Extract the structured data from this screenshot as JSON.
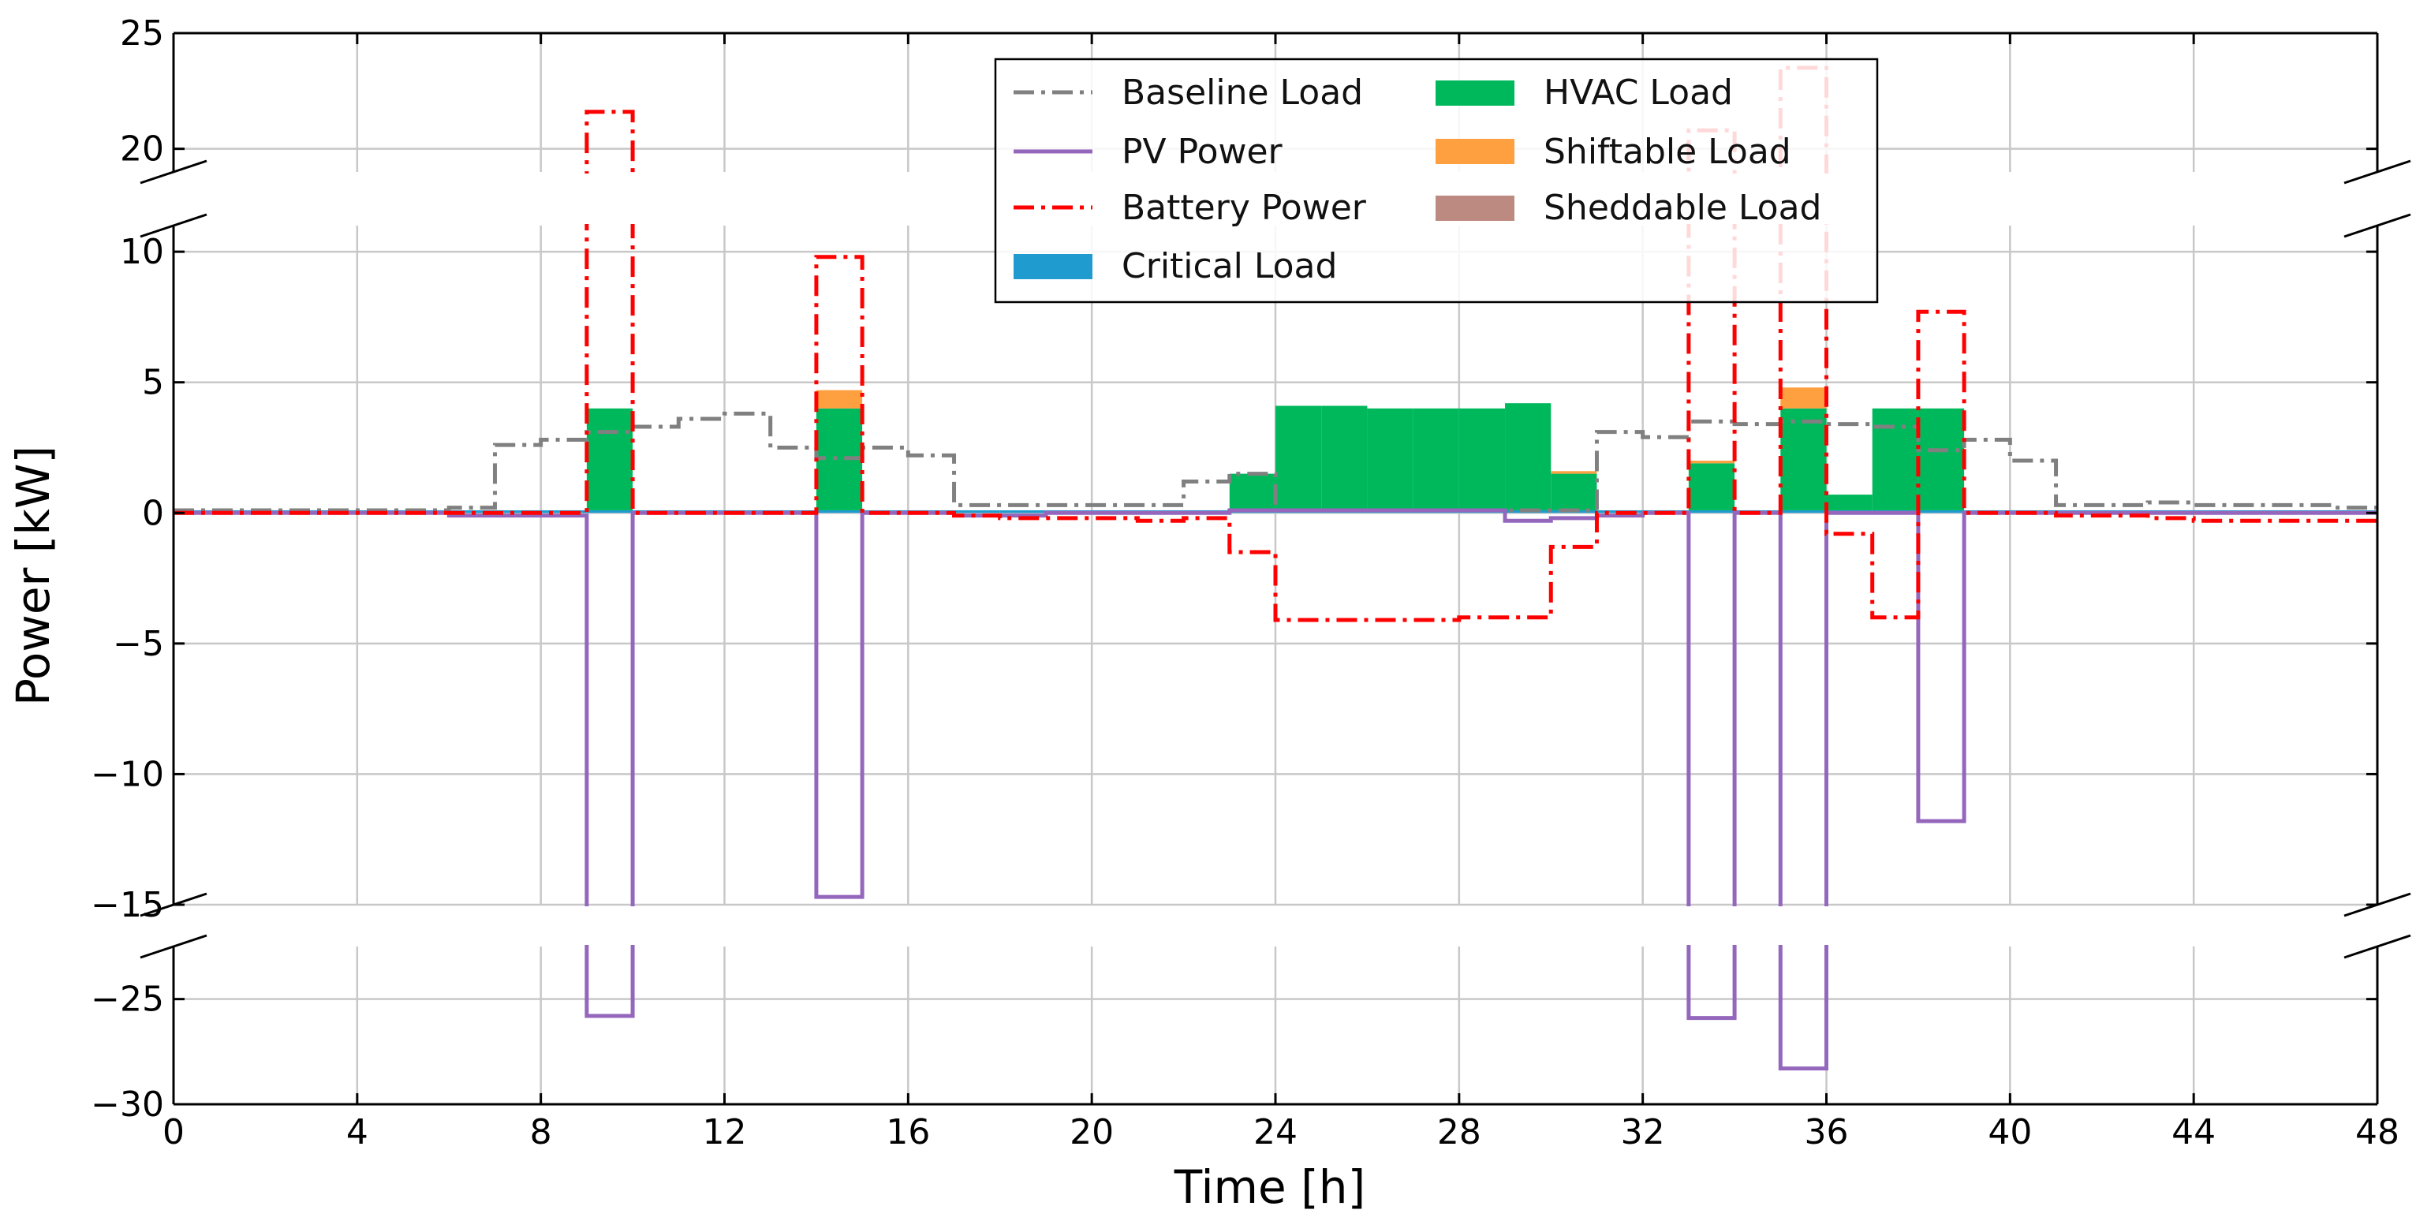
{
  "chart_data": {
    "type": "line",
    "title": "",
    "xlabel": "Time [h]",
    "ylabel": "Power [kW]",
    "xlim": [
      0,
      48
    ],
    "x_ticks": [
      0,
      4,
      8,
      12,
      16,
      20,
      24,
      28,
      32,
      36,
      40,
      44,
      48
    ],
    "broken_axis": {
      "segments": [
        {
          "name": "upper",
          "ylim": [
            19,
            25
          ],
          "ticks": [
            20,
            25
          ]
        },
        {
          "name": "middle",
          "ylim": [
            -15,
            11
          ],
          "ticks": [
            -15,
            -10,
            -5,
            0,
            5,
            10
          ]
        },
        {
          "name": "lower",
          "ylim": [
            -30,
            -22.5
          ],
          "ticks": [
            -25,
            -30
          ]
        }
      ]
    },
    "grid": true,
    "legend": {
      "position": "top-center",
      "columns": 2,
      "entries": [
        {
          "label": "Baseline Load",
          "style": "dashdot-line",
          "color": "#808080"
        },
        {
          "label": "PV Power",
          "style": "line",
          "color": "#9467bd"
        },
        {
          "label": "Battery Power",
          "style": "dashdot-line",
          "color": "#ff0000"
        },
        {
          "label": "Critical Load",
          "style": "patch",
          "color": "#1f9bcf"
        },
        {
          "label": "HVAC Load",
          "style": "patch",
          "color": "#00b85c"
        },
        {
          "label": "Shiftable Load",
          "style": "patch",
          "color": "#ffa040"
        },
        {
          "label": "Sheddable Load",
          "style": "patch",
          "color": "#bc8a80"
        }
      ]
    },
    "hours": [
      0,
      1,
      2,
      3,
      4,
      5,
      6,
      7,
      8,
      9,
      10,
      11,
      12,
      13,
      14,
      15,
      16,
      17,
      18,
      19,
      20,
      21,
      22,
      23,
      24,
      25,
      26,
      27,
      28,
      29,
      30,
      31,
      32,
      33,
      34,
      35,
      36,
      37,
      38,
      39,
      40,
      41,
      42,
      43,
      44,
      45,
      46,
      47
    ],
    "series": [
      {
        "name": "Baseline Load",
        "kind": "step",
        "color": "#808080",
        "values": [
          0.1,
          0.1,
          0.1,
          0.1,
          0.1,
          0.1,
          0.2,
          2.6,
          2.8,
          3.1,
          3.3,
          3.6,
          3.8,
          2.5,
          2.1,
          2.5,
          2.2,
          0.3,
          0.3,
          0.3,
          0.3,
          0.3,
          1.2,
          1.5,
          0.1,
          0.1,
          0.1,
          0.1,
          0.1,
          0.1,
          0.1,
          3.1,
          2.9,
          3.5,
          3.4,
          3.5,
          3.4,
          3.3,
          2.4,
          2.8,
          2.0,
          0.3,
          0.3,
          0.4,
          0.3,
          0.3,
          0.3,
          0.2
        ]
      },
      {
        "name": "PV Power",
        "kind": "step",
        "color": "#9467bd",
        "values": [
          0,
          0,
          0,
          0,
          0,
          0,
          -0.1,
          -0.1,
          -0.1,
          -25.8,
          0,
          0,
          0,
          0,
          -14.7,
          0,
          0,
          -0.1,
          -0.1,
          0,
          0,
          0,
          0,
          0.1,
          0.1,
          0.1,
          0.1,
          0.1,
          0.1,
          -0.3,
          -0.2,
          -0.1,
          0,
          -25.9,
          0,
          -28.3,
          0,
          0,
          -11.8,
          0,
          0,
          0,
          0,
          0,
          0,
          0,
          0,
          0
        ]
      },
      {
        "name": "Battery Power",
        "kind": "step",
        "color": "#ff0000",
        "values": [
          0,
          0,
          0,
          0,
          0,
          0,
          0,
          0,
          0,
          21.6,
          0,
          0,
          0,
          0,
          9.8,
          0,
          0,
          -0.1,
          -0.2,
          -0.2,
          -0.2,
          -0.3,
          -0.2,
          -1.5,
          -4.1,
          -4.1,
          -4.1,
          -4.1,
          -4.0,
          -4.0,
          -1.3,
          0,
          0,
          20.8,
          0,
          23.5,
          -0.8,
          -4.0,
          7.7,
          0,
          0,
          -0.1,
          -0.1,
          -0.2,
          -0.3,
          -0.3,
          -0.3,
          -0.3
        ]
      },
      {
        "name": "Critical Load",
        "kind": "stack",
        "color": "#1f9bcf",
        "values": [
          0.1,
          0.1,
          0.1,
          0.1,
          0.1,
          0.1,
          0.1,
          0.1,
          0.1,
          0.1,
          0.1,
          0.1,
          0.1,
          0.1,
          0.1,
          0.1,
          0.1,
          0.1,
          0.1,
          0.1,
          0.1,
          0.1,
          0.1,
          0.1,
          0.1,
          0.1,
          0.1,
          0.1,
          0.1,
          0.1,
          0.1,
          0.1,
          0.1,
          0.1,
          0.1,
          0.1,
          0.1,
          0.1,
          0.1,
          0.1,
          0.1,
          0.1,
          0.1,
          0.1,
          0.1,
          0.1,
          0.1,
          0.1
        ]
      },
      {
        "name": "HVAC Load",
        "kind": "stack",
        "color": "#00b85c",
        "values": [
          0,
          0,
          0,
          0,
          0,
          0,
          0,
          0,
          0,
          3.9,
          0,
          0,
          0,
          0,
          3.9,
          0,
          0,
          0,
          0,
          0,
          0,
          0,
          0,
          1.4,
          4.0,
          4.0,
          3.9,
          3.9,
          3.9,
          4.1,
          1.4,
          0,
          0,
          1.8,
          0,
          3.9,
          0.6,
          3.9,
          3.9,
          0,
          0,
          0,
          0,
          0,
          0,
          0,
          0,
          0
        ]
      },
      {
        "name": "Shiftable Load",
        "kind": "stack",
        "color": "#ffa040",
        "values": [
          0,
          0,
          0,
          0,
          0,
          0,
          0,
          0,
          0,
          0,
          0,
          0,
          0,
          0,
          0.7,
          0,
          0,
          0,
          0,
          0,
          0,
          0,
          0,
          0,
          0,
          0,
          0,
          0,
          0,
          0,
          0.1,
          0,
          0,
          0.1,
          0,
          0.8,
          0,
          0,
          0,
          0,
          0,
          0,
          0,
          0,
          0,
          0,
          0,
          0
        ]
      },
      {
        "name": "Sheddable Load",
        "kind": "stack",
        "color": "#bc8a80",
        "values": [
          0,
          0,
          0,
          0,
          0,
          0,
          0,
          0,
          0,
          0,
          0,
          0,
          0,
          0,
          0,
          0,
          0,
          0,
          0,
          0,
          0,
          0,
          0,
          0,
          0,
          0,
          0,
          0,
          0,
          0,
          0,
          0,
          0,
          0,
          0,
          0,
          0,
          0,
          0,
          0,
          0,
          0,
          0,
          0,
          0,
          0,
          0,
          0
        ]
      }
    ]
  }
}
